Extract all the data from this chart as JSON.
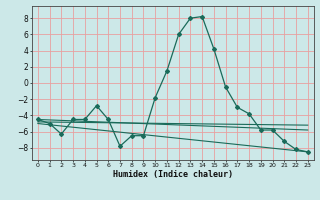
{
  "xlabel": "Humidex (Indice chaleur)",
  "background_color": "#cce8e8",
  "line_color": "#1a6b5a",
  "grid_color": "#e8a0a0",
  "xlim": [
    -0.5,
    23.5
  ],
  "ylim": [
    -9.5,
    9.5
  ],
  "yticks": [
    -8,
    -6,
    -4,
    -2,
    0,
    2,
    4,
    6,
    8
  ],
  "xticks": [
    0,
    1,
    2,
    3,
    4,
    5,
    6,
    7,
    8,
    9,
    10,
    11,
    12,
    13,
    14,
    15,
    16,
    17,
    18,
    19,
    20,
    21,
    22,
    23
  ],
  "line_main": {
    "x": [
      0,
      1,
      2,
      3,
      4,
      5,
      6,
      7,
      8,
      9,
      10,
      11,
      12,
      13,
      14,
      15,
      16,
      17,
      18,
      19,
      20,
      21,
      22,
      23
    ],
    "y": [
      -4.5,
      -5.0,
      -6.3,
      -4.5,
      -4.5,
      -2.8,
      -4.5,
      -7.8,
      -6.5,
      -6.5,
      -1.8,
      1.5,
      6.0,
      8.0,
      8.2,
      4.2,
      -0.5,
      -3.0,
      -3.8,
      -5.8,
      -5.8,
      -7.2,
      -8.2,
      -8.5
    ]
  },
  "line_trend1": {
    "x": [
      0,
      23
    ],
    "y": [
      -4.5,
      -5.8
    ]
  },
  "line_trend2": {
    "x": [
      0,
      23
    ],
    "y": [
      -5.0,
      -8.5
    ]
  },
  "line_trend3": {
    "x": [
      0,
      23
    ],
    "y": [
      -4.8,
      -5.2
    ]
  }
}
